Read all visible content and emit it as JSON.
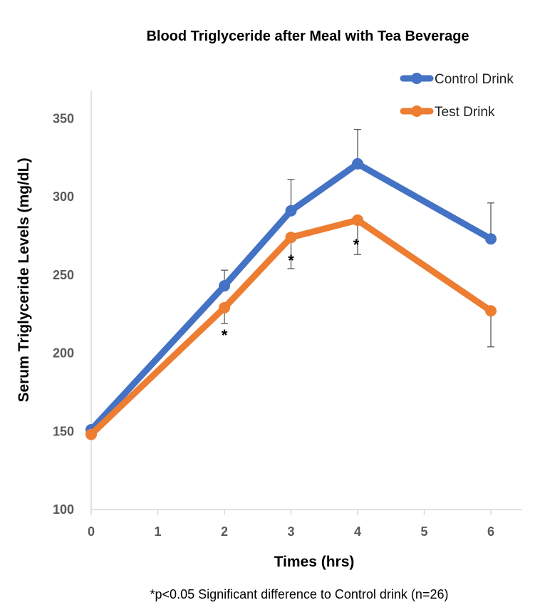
{
  "chart_data": {
    "type": "line",
    "title": "Blood Triglyceride after Meal with Tea Beverage",
    "xlabel": "Times (hrs)",
    "ylabel": "Serum Triglyceride Levels (mg/dL)",
    "x_ticks": [
      "0",
      "1",
      "2",
      "3",
      "4",
      "5",
      "6"
    ],
    "y_ticks": [
      "100",
      "150",
      "200",
      "250",
      "300",
      "350"
    ],
    "xlim": [
      0,
      6.5
    ],
    "ylim": [
      100,
      360
    ],
    "grid": false,
    "legend_position": "top-right",
    "series": [
      {
        "name": "Control Drink",
        "color": "#4472C4",
        "x": [
          0,
          2,
          3,
          4,
          6
        ],
        "y": [
          151,
          243,
          291,
          321,
          273
        ],
        "error_upper": [
          null,
          253,
          311,
          343,
          296
        ]
      },
      {
        "name": "Test Drink",
        "color": "#ED7D31",
        "x": [
          0,
          2,
          3,
          4,
          6
        ],
        "y": [
          148,
          229,
          274,
          285,
          227
        ],
        "error_lower": [
          null,
          219,
          254,
          263,
          204
        ]
      }
    ],
    "significance_marks": [
      {
        "x": 2,
        "label": "*"
      },
      {
        "x": 3,
        "label": "*"
      },
      {
        "x": 4,
        "label": "*"
      }
    ],
    "footnote": "*p<0.05 Significant difference to Control drink (n=26)"
  }
}
